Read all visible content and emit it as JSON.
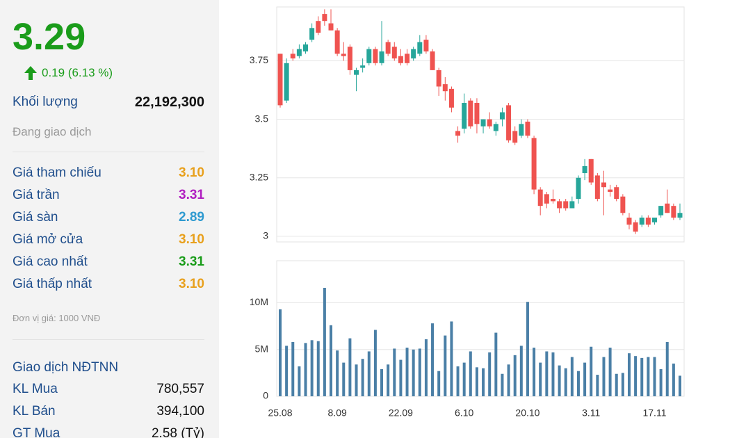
{
  "quote": {
    "price": "3.29",
    "change": "0.19 (6.13 %)",
    "volume_label": "Khối lượng",
    "volume": "22,192,300",
    "status": "Đang giao dịch",
    "rows": [
      {
        "label": "Giá tham chiếu",
        "value": "3.10",
        "color": "#e8a01c"
      },
      {
        "label": "Giá trần",
        "value": "3.31",
        "color": "#b01ec0"
      },
      {
        "label": "Giá sàn",
        "value": "2.89",
        "color": "#2e9ad0"
      },
      {
        "label": "Giá mở cửa",
        "value": "3.10",
        "color": "#e8a01c"
      },
      {
        "label": "Giá cao nhất",
        "value": "3.31",
        "color": "#1a9c1a"
      },
      {
        "label": "Giá thấp nhất",
        "value": "3.10",
        "color": "#e8a01c"
      }
    ],
    "unit_note": "Đơn vị giá: 1000 VNĐ",
    "foreign_title": "Giao dịch NĐTNN",
    "foreign_rows": [
      {
        "label": "KL Mua",
        "value": "780,557"
      },
      {
        "label": "KL Bán",
        "value": "394,100"
      },
      {
        "label": "GT Mua",
        "value": "2.58 (Tỷ)"
      }
    ]
  },
  "chart_data": [
    {
      "type": "candlestick",
      "up_color": "#26a69a",
      "down_color": "#ef5350",
      "grid": true,
      "ylim": [
        2.976,
        3.98
      ],
      "yticks": [
        3,
        3.25,
        3.5,
        3.75
      ],
      "open": [
        3.78,
        3.58,
        3.78,
        3.77,
        3.79,
        3.84,
        3.92,
        3.95,
        3.91,
        3.88,
        3.78,
        3.81,
        3.69,
        3.72,
        3.74,
        3.8,
        3.74,
        3.83,
        3.81,
        3.77,
        3.78,
        3.76,
        3.78,
        3.84,
        3.79,
        3.71,
        3.65,
        3.63,
        3.45,
        3.46,
        3.58,
        3.57,
        3.47,
        3.5,
        3.45,
        3.5,
        3.56,
        3.45,
        3.43,
        3.49,
        3.42,
        3.2,
        3.18,
        3.16,
        3.15,
        3.15,
        3.12,
        3.16,
        3.27,
        3.33,
        3.26,
        3.23,
        3.2,
        3.21,
        3.17,
        3.08,
        3.06,
        3.05,
        3.08,
        3.06,
        3.09,
        3.14,
        3.13,
        3.08
      ],
      "high": [
        3.78,
        3.76,
        3.8,
        3.82,
        3.83,
        3.91,
        3.94,
        3.97,
        3.97,
        3.89,
        3.83,
        3.82,
        3.72,
        3.76,
        3.81,
        3.81,
        3.92,
        3.84,
        3.83,
        3.8,
        3.8,
        3.81,
        3.86,
        3.86,
        3.8,
        3.72,
        3.68,
        3.64,
        3.47,
        3.61,
        3.59,
        3.59,
        3.5,
        3.53,
        3.49,
        3.55,
        3.57,
        3.47,
        3.5,
        3.5,
        3.43,
        3.21,
        3.19,
        3.2,
        3.16,
        3.16,
        3.17,
        3.26,
        3.33,
        3.33,
        3.27,
        3.28,
        3.22,
        3.22,
        3.18,
        3.1,
        3.07,
        3.09,
        3.09,
        3.08,
        3.13,
        3.2,
        3.14,
        3.14
      ],
      "low": [
        3.55,
        3.57,
        3.75,
        3.76,
        3.78,
        3.83,
        3.86,
        3.9,
        3.88,
        3.77,
        3.75,
        3.69,
        3.62,
        3.7,
        3.73,
        3.73,
        3.73,
        3.77,
        3.75,
        3.73,
        3.73,
        3.75,
        3.77,
        3.78,
        3.71,
        3.6,
        3.58,
        3.53,
        3.4,
        3.44,
        3.46,
        3.44,
        3.44,
        3.46,
        3.43,
        3.47,
        3.4,
        3.39,
        3.42,
        3.42,
        3.18,
        3.09,
        3.12,
        3.14,
        3.1,
        3.11,
        3.12,
        3.14,
        3.24,
        3.22,
        3.15,
        3.09,
        3.17,
        3.15,
        3.09,
        3.03,
        3.01,
        3.04,
        3.04,
        3.05,
        3.08,
        3.1,
        3.07,
        3.07
      ],
      "close": [
        3.56,
        3.74,
        3.76,
        3.8,
        3.82,
        3.89,
        3.87,
        3.92,
        3.88,
        3.78,
        3.77,
        3.71,
        3.71,
        3.73,
        3.8,
        3.74,
        3.79,
        3.78,
        3.76,
        3.74,
        3.74,
        3.8,
        3.83,
        3.79,
        3.71,
        3.64,
        3.62,
        3.55,
        3.43,
        3.57,
        3.47,
        3.48,
        3.5,
        3.47,
        3.48,
        3.53,
        3.41,
        3.4,
        3.48,
        3.43,
        3.2,
        3.13,
        3.14,
        3.15,
        3.12,
        3.12,
        3.15,
        3.25,
        3.3,
        3.23,
        3.16,
        3.21,
        3.19,
        3.16,
        3.1,
        3.05,
        3.02,
        3.08,
        3.05,
        3.08,
        3.13,
        3.1,
        3.08,
        3.1
      ]
    },
    {
      "type": "bar",
      "color": "#4a7fa6",
      "grid": true,
      "ylim": [
        0,
        14500000
      ],
      "yticks": [
        0,
        {
          "value": 5000000,
          "label": "5M"
        },
        {
          "value": 10000000,
          "label": "10M"
        }
      ],
      "categories": [
        "25.08",
        null,
        null,
        null,
        null,
        null,
        null,
        null,
        null,
        "8.09",
        null,
        null,
        null,
        null,
        null,
        null,
        null,
        null,
        null,
        "22.09",
        null,
        null,
        null,
        null,
        null,
        null,
        null,
        null,
        null,
        "6.10",
        null,
        null,
        null,
        null,
        null,
        null,
        null,
        null,
        null,
        "20.10",
        null,
        null,
        null,
        null,
        null,
        null,
        null,
        null,
        null,
        "3.11",
        null,
        null,
        null,
        null,
        null,
        null,
        null,
        null,
        null,
        "17.11",
        null,
        null,
        null,
        null
      ],
      "values": [
        9300000,
        5400000,
        5800000,
        3200000,
        5700000,
        6000000,
        5900000,
        11600000,
        7600000,
        4900000,
        3600000,
        6200000,
        3400000,
        4000000,
        4800000,
        7100000,
        2900000,
        3400000,
        5100000,
        3900000,
        5200000,
        5000000,
        5100000,
        6100000,
        7800000,
        2700000,
        6500000,
        8000000,
        3200000,
        3600000,
        4800000,
        3100000,
        3000000,
        4700000,
        6800000,
        2400000,
        3400000,
        4400000,
        5400000,
        10100000,
        5200000,
        3600000,
        4800000,
        4700000,
        3300000,
        3000000,
        4200000,
        2700000,
        3600000,
        5300000,
        2300000,
        4200000,
        5200000,
        2400000,
        2500000,
        4600000,
        4300000,
        4100000,
        4200000,
        4200000,
        2900000,
        5800000,
        3500000,
        2200000
      ]
    }
  ]
}
